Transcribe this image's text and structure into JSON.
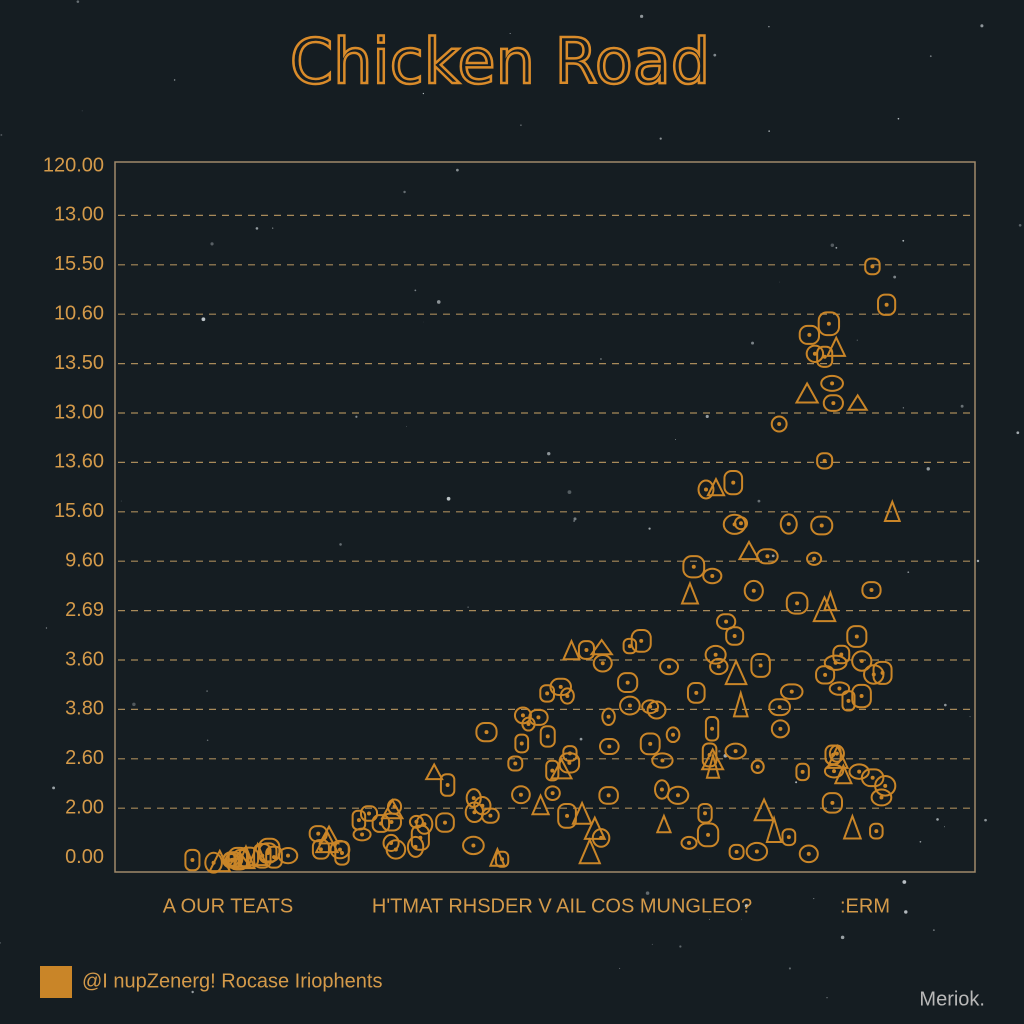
{
  "title": "Chicken Road",
  "y_axis_labels": [
    "120.00",
    "13.00",
    "15.50",
    "10.60",
    "13.50",
    "13.00",
    "13.60",
    "15.60",
    "9.60",
    "2.69",
    "3.60",
    "3.80",
    "2.60",
    "2.00",
    "0.00"
  ],
  "x_axis_labels": [
    "A OUR TEATS",
    "H'TMAT RHSDER V AIL COS MUNGLEO?",
    ":ERM"
  ],
  "legend": {
    "label": "@I nupZenerg! Rocase Iriophents"
  },
  "watermark": "Meriok."
}
